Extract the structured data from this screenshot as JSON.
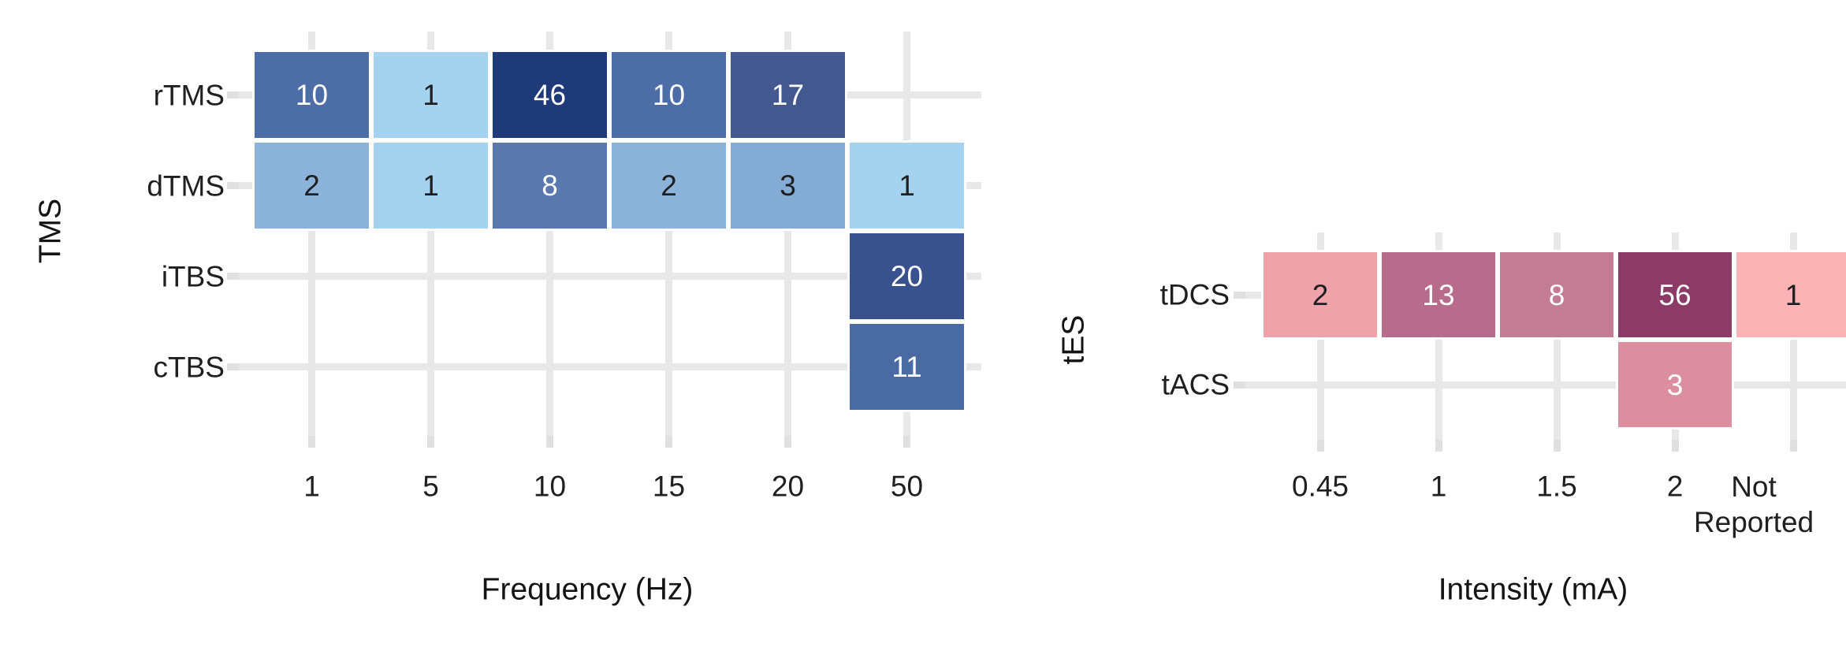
{
  "figure": {
    "background": "#ffffff",
    "gridline_color": "#e8e8e8",
    "axis_text_color": "#1f1f1f"
  },
  "chart_data": [
    {
      "type": "heatmap",
      "title": "",
      "xlabel": "Frequency (Hz)",
      "ylabel": "TMS",
      "x_categories": [
        "1",
        "5",
        "10",
        "15",
        "20",
        "50"
      ],
      "y_categories": [
        "rTMS",
        "dTMS",
        "iTBS",
        "cTBS"
      ],
      "grid": true,
      "legend": "none",
      "color_scale": {
        "low": "#A5D2EE",
        "high": "#1F3A78"
      },
      "cells": [
        {
          "y": "rTMS",
          "x": "1",
          "value": 10,
          "bg": "#4C6DA5",
          "fg": "#FFFFFF"
        },
        {
          "y": "rTMS",
          "x": "5",
          "value": 1,
          "bg": "#A5D2EE",
          "fg": "#1F1F1F"
        },
        {
          "y": "rTMS",
          "x": "10",
          "value": 46,
          "bg": "#1F3A78",
          "fg": "#FFFFFF"
        },
        {
          "y": "rTMS",
          "x": "15",
          "value": 10,
          "bg": "#4C6DA5",
          "fg": "#FFFFFF"
        },
        {
          "y": "rTMS",
          "x": "20",
          "value": 17,
          "bg": "#43588F",
          "fg": "#FFFFFF"
        },
        {
          "y": "dTMS",
          "x": "1",
          "value": 2,
          "bg": "#8CB3D9",
          "fg": "#1F1F1F"
        },
        {
          "y": "dTMS",
          "x": "5",
          "value": 1,
          "bg": "#A5D2EE",
          "fg": "#1F1F1F"
        },
        {
          "y": "dTMS",
          "x": "10",
          "value": 8,
          "bg": "#5979AE",
          "fg": "#FFFFFF"
        },
        {
          "y": "dTMS",
          "x": "15",
          "value": 2,
          "bg": "#8CB3D9",
          "fg": "#1F1F1F"
        },
        {
          "y": "dTMS",
          "x": "20",
          "value": 3,
          "bg": "#83ABD3",
          "fg": "#1F1F1F"
        },
        {
          "y": "dTMS",
          "x": "50",
          "value": 1,
          "bg": "#A5D2EE",
          "fg": "#1F1F1F"
        },
        {
          "y": "iTBS",
          "x": "50",
          "value": 20,
          "bg": "#39518C",
          "fg": "#FFFFFF"
        },
        {
          "y": "cTBS",
          "x": "50",
          "value": 11,
          "bg": "#4A6AA3",
          "fg": "#FFFFFF"
        }
      ]
    },
    {
      "type": "heatmap",
      "title": "",
      "xlabel": "Intensity (mA)",
      "ylabel": "tES",
      "x_categories": [
        "0.45",
        "1",
        "1.5",
        "2",
        "Not Reported"
      ],
      "y_categories": [
        "tDCS",
        "tACS"
      ],
      "grid": true,
      "legend": "none",
      "color_scale": {
        "low": "#FBB3B5",
        "high": "#8C3B67"
      },
      "cells": [
        {
          "y": "tDCS",
          "x": "0.45",
          "value": 2,
          "bg": "#F0A2AB",
          "fg": "#1F1F1F"
        },
        {
          "y": "tDCS",
          "x": "1",
          "value": 13,
          "bg": "#B76C8C",
          "fg": "#FFFFFF"
        },
        {
          "y": "tDCS",
          "x": "1.5",
          "value": 8,
          "bg": "#C47C95",
          "fg": "#FFFFFF"
        },
        {
          "y": "tDCS",
          "x": "2",
          "value": 56,
          "bg": "#8C3B67",
          "fg": "#FFFFFF"
        },
        {
          "y": "tDCS",
          "x": "Not Reported",
          "value": 1,
          "bg": "#FBB3B5",
          "fg": "#1F1F1F"
        },
        {
          "y": "tACS",
          "x": "2",
          "value": 3,
          "bg": "#DB8EA0",
          "fg": "#FFFFFF"
        }
      ]
    }
  ]
}
